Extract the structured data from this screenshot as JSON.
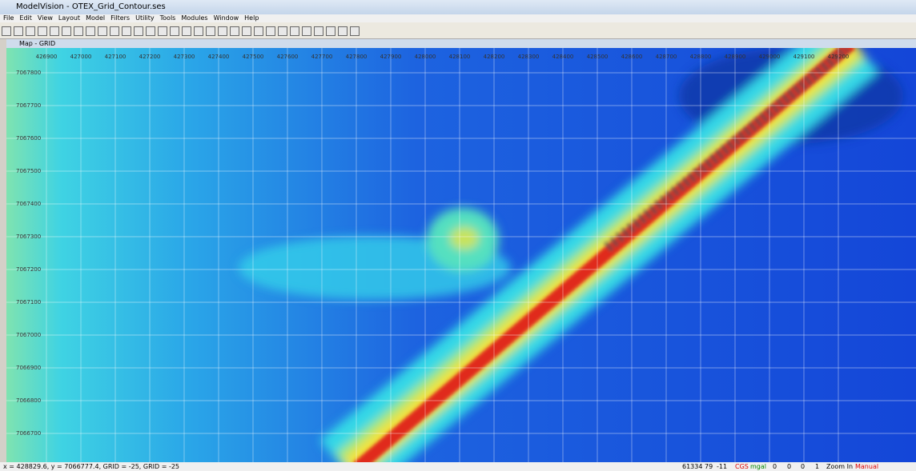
{
  "window": {
    "title": "ModelVision - OTEX_Grid_Contour.ses"
  },
  "menu": [
    "File",
    "Edit",
    "View",
    "Layout",
    "Model",
    "Filters",
    "Utility",
    "Tools",
    "Modules",
    "Window",
    "Help"
  ],
  "map": {
    "title": "Map - GRID",
    "x_labels": [
      "426900",
      "427000",
      "427100",
      "427200",
      "427300",
      "427400",
      "427500",
      "427600",
      "427700",
      "427800",
      "427900",
      "428000",
      "428100",
      "428200",
      "428300",
      "428400",
      "428500",
      "428600",
      "428700",
      "428800",
      "428900",
      "429000",
      "429100",
      "429200"
    ],
    "y_labels": [
      "7067800",
      "7067700",
      "7067600",
      "7067500",
      "7067400",
      "7067300",
      "7067200",
      "7067100",
      "7067000",
      "7066900",
      "7066800",
      "7066700"
    ]
  },
  "status": {
    "position": "x = 428829.6, y = 7066777.4, GRID = -25, GRID = -25",
    "fields": [
      "61334",
      "79",
      "-11",
      "CGS",
      "mgal",
      "0",
      "0",
      "0",
      "1",
      "Zoom In",
      "Manual"
    ]
  }
}
